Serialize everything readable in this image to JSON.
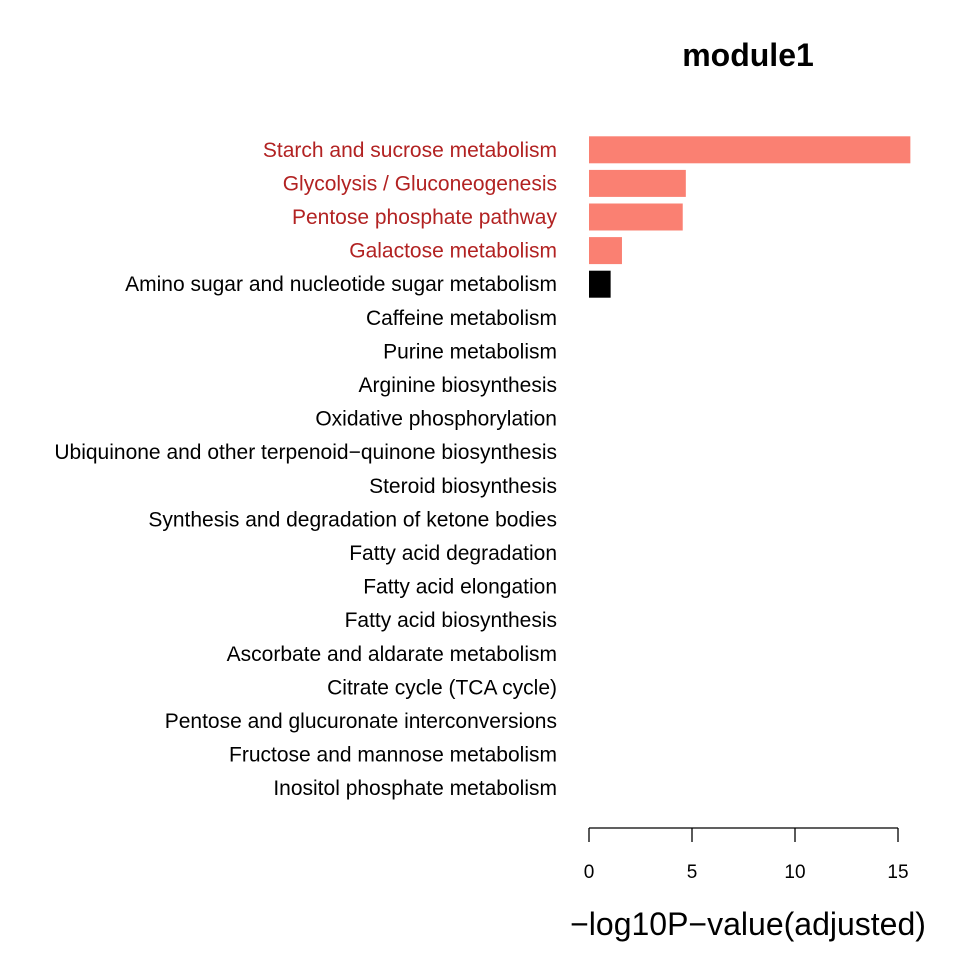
{
  "chart_data": {
    "type": "bar",
    "orientation": "horizontal",
    "title": "module1",
    "xlabel": "−log10P−value(adjusted)",
    "ylabel": "",
    "xlim": [
      0,
      15
    ],
    "xticks": [
      "0",
      "5",
      "10",
      "15"
    ],
    "grid": false,
    "categories": [
      "Starch and sucrose metabolism",
      "Glycolysis / Gluconeogenesis",
      "Pentose phosphate pathway",
      "Galactose metabolism",
      "Amino sugar and nucleotide sugar metabolism",
      "Caffeine metabolism",
      "Purine metabolism",
      "Arginine biosynthesis",
      "Oxidative phosphorylation",
      "Ubiquinone and other terpenoid−quinone biosynthesis",
      "Steroid biosynthesis",
      "Synthesis and degradation of ketone bodies",
      "Fatty acid degradation",
      "Fatty acid elongation",
      "Fatty acid biosynthesis",
      "Ascorbate and aldarate metabolism",
      "Citrate cycle (TCA cycle)",
      "Pentose and glucuronate interconversions",
      "Fructose and mannose metabolism",
      "Inositol phosphate metabolism"
    ],
    "values": [
      15.6,
      4.7,
      4.55,
      1.6,
      1.05,
      0,
      0,
      0,
      0,
      0,
      0,
      0,
      0,
      0,
      0,
      0,
      0,
      0,
      0,
      0
    ],
    "significant": [
      true,
      true,
      true,
      true,
      false,
      false,
      false,
      false,
      false,
      false,
      false,
      false,
      false,
      false,
      false,
      false,
      false,
      false,
      false,
      false
    ],
    "colors": {
      "significant_bar": "#fa8072",
      "significant_label": "#b22222",
      "other_bar": "#000000",
      "other_label": "#000000"
    }
  }
}
